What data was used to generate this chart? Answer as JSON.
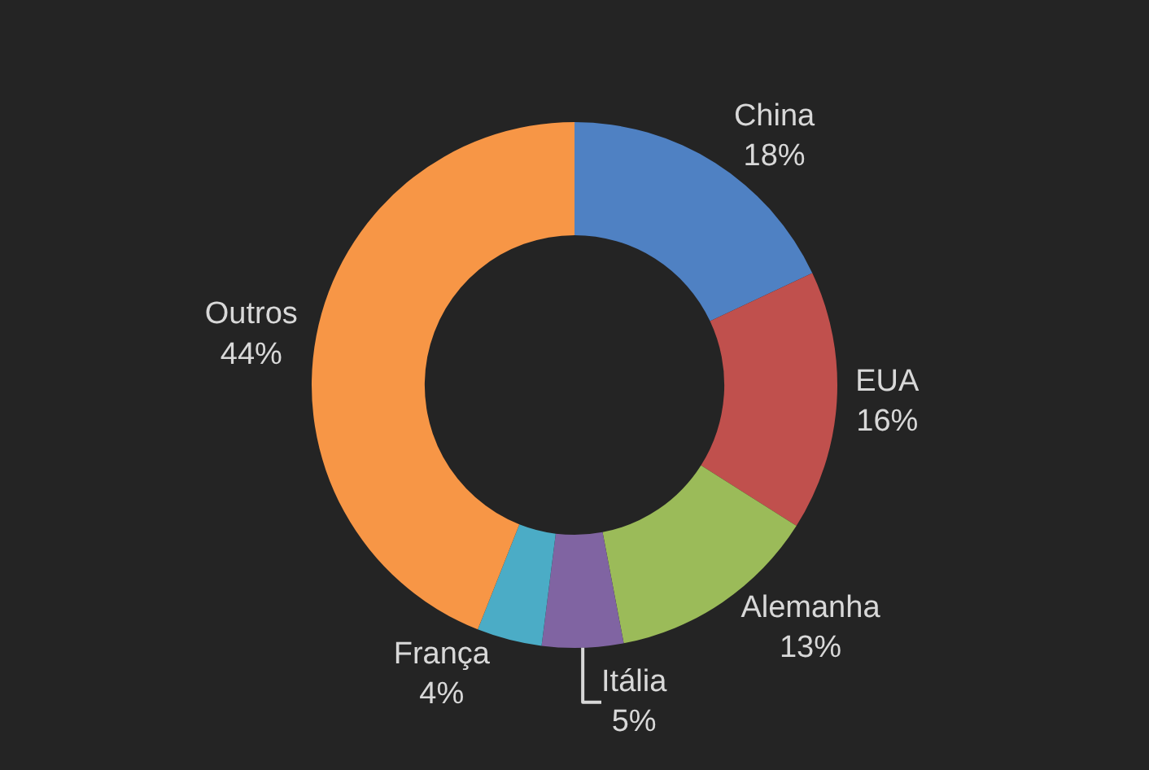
{
  "chart_data": {
    "type": "donut",
    "categories": [
      "China",
      "EUA",
      "Alemanha",
      "Itália",
      "França",
      "Outros"
    ],
    "values": [
      18,
      16,
      13,
      5,
      4,
      44
    ],
    "value_labels": [
      "18%",
      "16%",
      "13%",
      "5%",
      "4%",
      "44%"
    ],
    "colors": [
      "#4f81c3",
      "#c0504d",
      "#9bbb59",
      "#8064a2",
      "#4bacc6",
      "#f79646"
    ],
    "legend": false
  }
}
